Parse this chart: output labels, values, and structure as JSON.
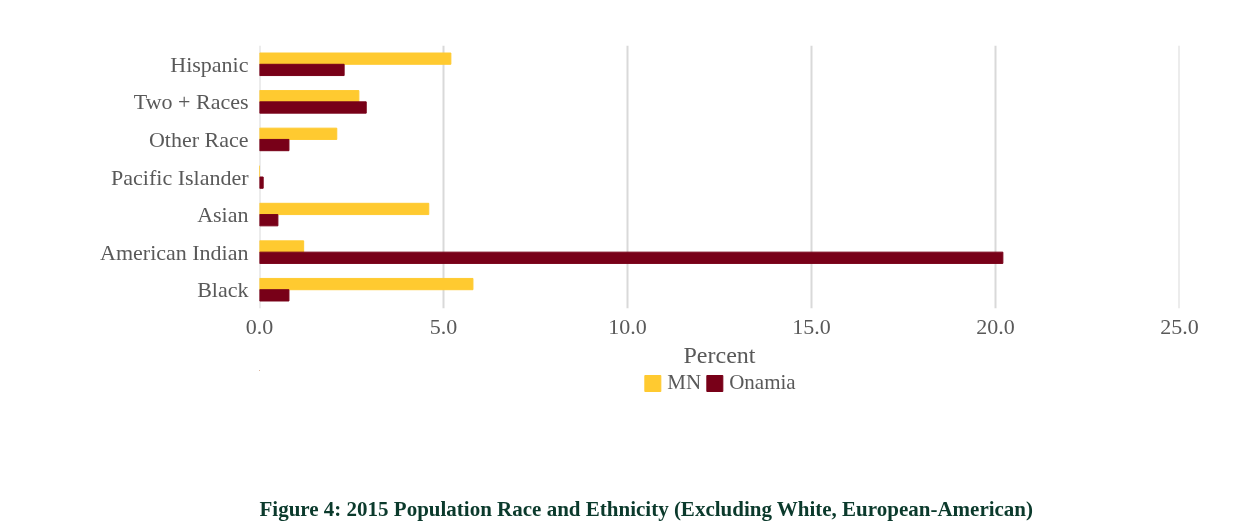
{
  "chart_data": {
    "type": "bar",
    "orientation": "horizontal",
    "title": "Figure 4: 2015 Population Race and Ethnicity (Excluding White, European-American)",
    "categories": [
      "Hispanic",
      "Two + Races",
      "Other Race",
      "Pacific Islander",
      "Asian",
      "American Indian",
      "Black"
    ],
    "series": [
      {
        "name": "MN",
        "color": "#ffca30",
        "values": [
          5.2,
          2.7,
          2.1,
          0,
          4.6,
          1.2,
          5.8
        ]
      },
      {
        "name": "Onamia",
        "color": "#780018",
        "values": [
          2.3,
          2.9,
          0.8,
          0.1,
          0.5,
          20.2,
          0.8
        ]
      }
    ],
    "xlabel": "Percent",
    "xlim": [
      0,
      25
    ],
    "xticks": [
      {
        "value": 0,
        "label": "0.0"
      },
      {
        "value": 5,
        "label": "5.0"
      },
      {
        "value": 10,
        "label": "10.0"
      },
      {
        "value": 15,
        "label": "15.0"
      },
      {
        "value": 20,
        "label": "20.0"
      },
      {
        "value": 25,
        "label": "25.0"
      }
    ],
    "grid": "x",
    "legend": "bottom"
  }
}
